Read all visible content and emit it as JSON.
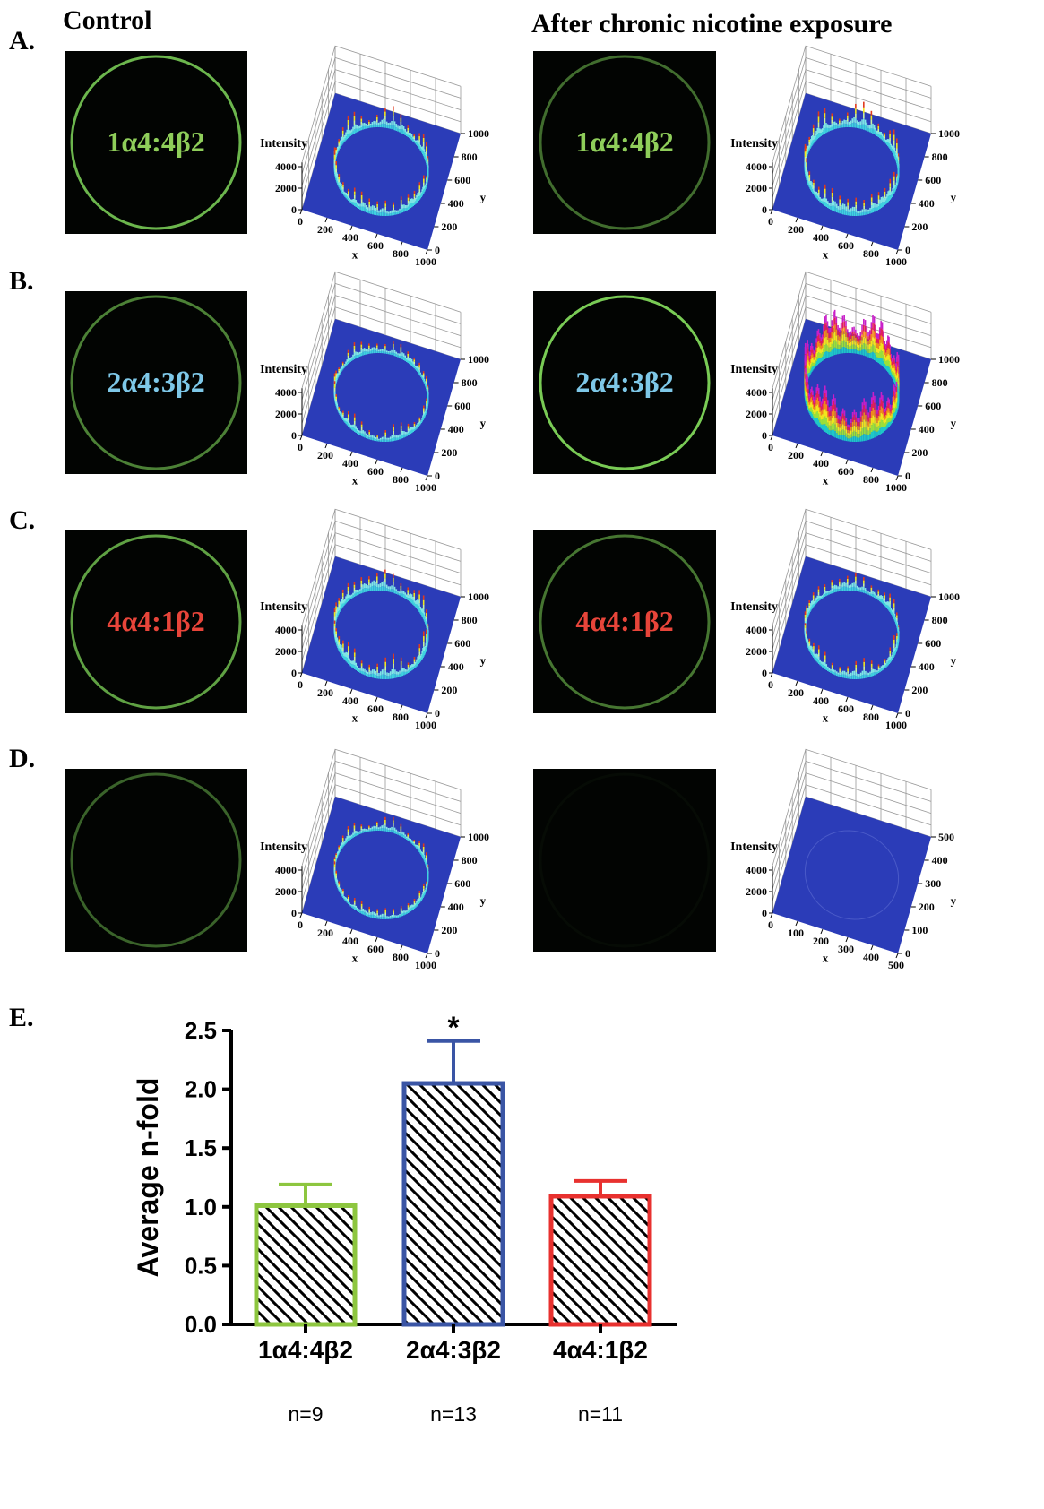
{
  "headers": {
    "control": "Control",
    "nicotine": "After chronic nicotine exposure"
  },
  "rows": [
    {
      "letter": "A.",
      "cells": [
        {
          "label": "1α4:4β2",
          "label_color": "#8fce5a",
          "plot": {
            "z_label": "Intensity",
            "z_ticks": [
              0,
              2000,
              4000
            ],
            "x_label": "x",
            "x_ticks": [
              0,
              200,
              400,
              600,
              800,
              1000
            ],
            "y_label": "y",
            "y_ticks": [
              0,
              200,
              400,
              600,
              800,
              1000
            ]
          }
        },
        {
          "label": "1α4:4β2",
          "label_color": "#8fce5a",
          "plot": {
            "z_label": "Intensity",
            "z_ticks": [
              0,
              2000,
              4000
            ],
            "x_label": "x",
            "x_ticks": [
              0,
              200,
              400,
              600,
              800,
              1000
            ],
            "y_label": "y",
            "y_ticks": [
              0,
              200,
              400,
              600,
              800,
              1000
            ]
          }
        }
      ]
    },
    {
      "letter": "B.",
      "cells": [
        {
          "label": "2α4:3β2",
          "label_color": "#7ec8e8",
          "plot": {
            "z_label": "Intensity",
            "z_ticks": [
              0,
              2000,
              4000
            ],
            "x_label": "x",
            "x_ticks": [
              0,
              200,
              400,
              600,
              800,
              1000
            ],
            "y_label": "y",
            "y_ticks": [
              0,
              200,
              400,
              600,
              800,
              1000
            ]
          }
        },
        {
          "label": "2α4:3β2",
          "label_color": "#7ec8e8",
          "plot": {
            "z_label": "Intensity",
            "z_ticks": [
              0,
              2000,
              4000
            ],
            "x_label": "x",
            "x_ticks": [
              0,
              200,
              400,
              600,
              800,
              1000
            ],
            "y_label": "y",
            "y_ticks": [
              0,
              200,
              400,
              600,
              800,
              1000
            ]
          }
        }
      ]
    },
    {
      "letter": "C.",
      "cells": [
        {
          "label": "4α4:1β2",
          "label_color": "#e8453a",
          "plot": {
            "z_label": "Intensity",
            "z_ticks": [
              0,
              2000,
              4000
            ],
            "x_label": "x",
            "x_ticks": [
              0,
              200,
              400,
              600,
              800,
              1000
            ],
            "y_label": "y",
            "y_ticks": [
              0,
              200,
              400,
              600,
              800,
              1000
            ]
          }
        },
        {
          "label": "4α4:1β2",
          "label_color": "#e8453a",
          "plot": {
            "z_label": "Intensity",
            "z_ticks": [
              0,
              2000,
              4000
            ],
            "x_label": "x",
            "x_ticks": [
              0,
              200,
              400,
              600,
              800,
              1000
            ],
            "y_label": "y",
            "y_ticks": [
              0,
              200,
              400,
              600,
              800,
              1000
            ]
          }
        }
      ]
    },
    {
      "letter": "D.",
      "cells": [
        {
          "plot": {
            "z_label": "Intensity",
            "z_ticks": [
              0,
              2000,
              4000
            ],
            "x_label": "x",
            "x_ticks": [
              0,
              200,
              400,
              600,
              800,
              1000
            ],
            "y_label": "y",
            "y_ticks": [
              0,
              200,
              400,
              600,
              800,
              1000
            ]
          }
        },
        {
          "plot": {
            "z_label": "Intensity",
            "z_ticks": [
              0,
              2000,
              4000
            ],
            "x_label": "x",
            "x_ticks": [
              0,
              100,
              200,
              300,
              400,
              500
            ],
            "y_label": "y",
            "y_ticks": [
              0,
              100,
              200,
              300,
              400,
              500
            ]
          }
        }
      ]
    }
  ],
  "chart_letter": "E.",
  "chart_data": {
    "type": "bar",
    "ylabel": "Average  n-fold",
    "categories": [
      "1α4:4β2",
      "2α4:3β2",
      "4α4:1β2"
    ],
    "sample_sizes": [
      "n=9",
      "n=13",
      "n=11"
    ],
    "values": [
      1.01,
      2.05,
      1.09
    ],
    "errors": [
      0.18,
      0.36,
      0.13
    ],
    "colors": [
      "#8dc63f",
      "#3a55a5",
      "#e8312f"
    ],
    "annotations": [
      {
        "category": 1,
        "text": "*"
      }
    ],
    "ylim": [
      0,
      2.5
    ],
    "yticks": [
      {
        "value": 0,
        "label": "0.0"
      },
      {
        "value": 0.5,
        "label": "0.5"
      },
      {
        "value": 1,
        "label": "1.0"
      },
      {
        "value": 1.5,
        "label": "1.5"
      },
      {
        "value": 2,
        "label": "2.0"
      },
      {
        "value": 2.5,
        "label": "2.5"
      }
    ]
  }
}
